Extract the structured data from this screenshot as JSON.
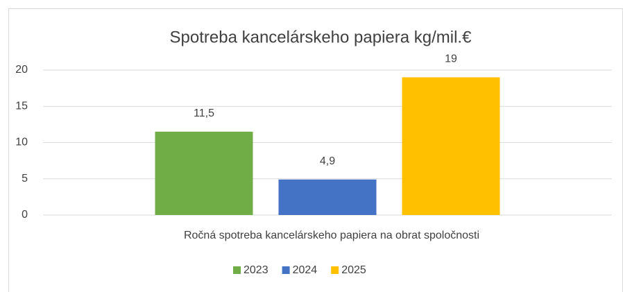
{
  "chart_data": {
    "type": "bar",
    "title": "Spotreba kancelárskeho papiera kg/mil.€",
    "categories": [
      "Ročná spotreba kancelárskeho papiera na obrat spoločnosti"
    ],
    "series": [
      {
        "name": "2023",
        "color": "#70ad47",
        "values": [
          11.5
        ],
        "value_labels": [
          "11,5"
        ]
      },
      {
        "name": "2024",
        "color": "#4472c4",
        "values": [
          4.9
        ],
        "value_labels": [
          "4,9"
        ]
      },
      {
        "name": "2025",
        "color": "#ffc000",
        "values": [
          19
        ]
      }
    ],
    "ylim": [
      0,
      20
    ],
    "yticks": [
      0,
      5,
      10,
      15,
      20
    ],
    "grid": true,
    "legend": "bottom"
  }
}
